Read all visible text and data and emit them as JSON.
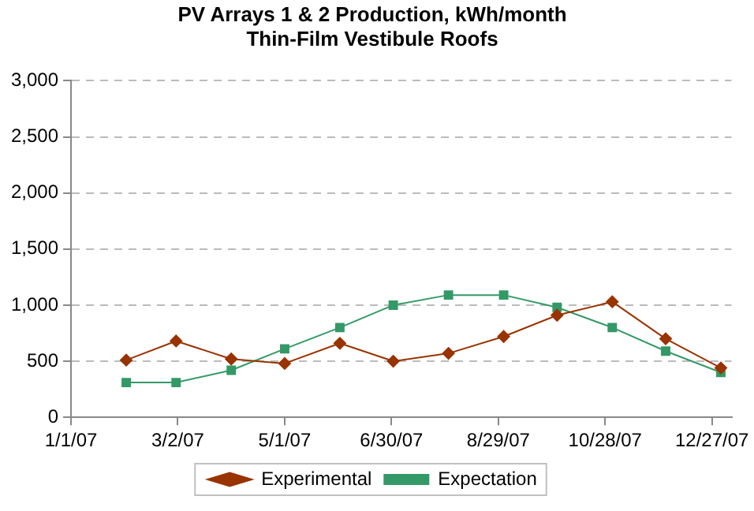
{
  "chart_data": {
    "type": "line",
    "title": [
      "PV Arrays 1 & 2 Production, kWh/month",
      "Thin-Film Vestibule Roofs"
    ],
    "x": [
      "2007-02-01",
      "2007-03-01",
      "2007-04-01",
      "2007-05-01",
      "2007-06-01",
      "2007-07-01",
      "2007-08-01",
      "2007-09-01",
      "2007-10-01",
      "2007-11-01",
      "2007-12-01",
      "2008-01-01"
    ],
    "series": [
      {
        "name": "Experimental",
        "color": "#993300",
        "marker": "diamond",
        "values": [
          510,
          680,
          520,
          480,
          660,
          500,
          570,
          720,
          910,
          1030,
          700,
          440
        ]
      },
      {
        "name": "Expectation",
        "color": "#339966",
        "marker": "square",
        "values": [
          310,
          310,
          420,
          610,
          800,
          1000,
          1090,
          1090,
          980,
          800,
          590,
          400
        ]
      }
    ],
    "xlim": [
      "2007-01-01",
      "2008-01-07"
    ],
    "xticks": [
      {
        "value": "2007-01-01",
        "label": "1/1/07"
      },
      {
        "value": "2007-03-02",
        "label": "3/2/07"
      },
      {
        "value": "2007-05-01",
        "label": "5/1/07"
      },
      {
        "value": "2007-06-30",
        "label": "6/30/07"
      },
      {
        "value": "2007-08-29",
        "label": "8/29/07"
      },
      {
        "value": "2007-10-28",
        "label": "10/28/07"
      },
      {
        "value": "2007-12-27",
        "label": "12/27/07"
      }
    ],
    "ylim": [
      0,
      3000
    ],
    "yticks": [
      {
        "value": 0,
        "label": "0"
      },
      {
        "value": 500,
        "label": "500"
      },
      {
        "value": 1000,
        "label": "1,000"
      },
      {
        "value": 1500,
        "label": "1,500"
      },
      {
        "value": 2000,
        "label": "2,000"
      },
      {
        "value": 2500,
        "label": "2,500"
      },
      {
        "value": 3000,
        "label": "3,000"
      }
    ],
    "grid": "y",
    "line_style": "solid",
    "legend": "bottom"
  }
}
